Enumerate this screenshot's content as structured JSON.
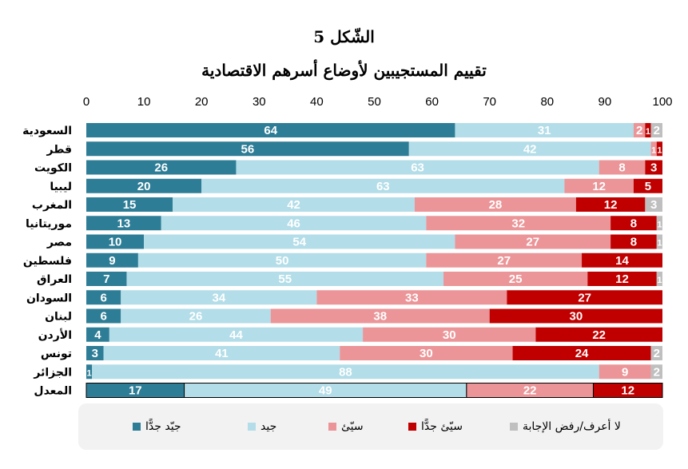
{
  "figure_number": "الشّكل 5",
  "chart_data": {
    "type": "bar",
    "orientation": "horizontal",
    "stacked": true,
    "title": "تقييم المستجيبين لأوضاع أسرهم الاقتصادية",
    "xlim": [
      0,
      100
    ],
    "x_ticks": [
      "0",
      "10",
      "20",
      "30",
      "40",
      "50",
      "60",
      "70",
      "80",
      "90",
      "100"
    ],
    "x_axis_position": "top",
    "legend_position": "bottom",
    "categories": [
      "السعودية",
      "قطر",
      "الكويت",
      "ليبيا",
      "المغرب",
      "موريتانيا",
      "مصر",
      "فلسطين",
      "العراق",
      "السودان",
      "لبنان",
      "الأردن",
      "تونس",
      "الجزائر",
      "المعدل"
    ],
    "series": [
      {
        "name": "جيّد جدًّا",
        "color": "#2e7d96",
        "label_color": "#ffffff",
        "values": [
          64,
          56,
          26,
          20,
          15,
          13,
          10,
          9,
          7,
          6,
          6,
          4,
          3,
          1,
          17
        ]
      },
      {
        "name": "جيد",
        "color": "#b3dde8",
        "label_color": "#ffffff",
        "values": [
          31,
          42,
          63,
          63,
          42,
          46,
          54,
          50,
          55,
          34,
          26,
          44,
          41,
          88,
          49
        ]
      },
      {
        "name": "سيّئ",
        "color": "#eb9598",
        "label_color": "#ffffff",
        "values": [
          2,
          1,
          8,
          12,
          28,
          32,
          27,
          27,
          25,
          33,
          38,
          30,
          30,
          9,
          22
        ]
      },
      {
        "name": "سيّئ جدًّا",
        "color": "#c00000",
        "label_color": "#ffffff",
        "values": [
          1,
          1,
          3,
          5,
          12,
          8,
          8,
          14,
          12,
          27,
          30,
          22,
          24,
          0,
          12
        ]
      },
      {
        "name": "لا أعرف/رفض الإجابة",
        "color": "#bfbfbf",
        "label_color": "#ffffff",
        "values": [
          2,
          0,
          0,
          0,
          3,
          1,
          1,
          0,
          1,
          0,
          0,
          0,
          2,
          2,
          0
        ]
      }
    ],
    "highlight_last_category": true
  }
}
